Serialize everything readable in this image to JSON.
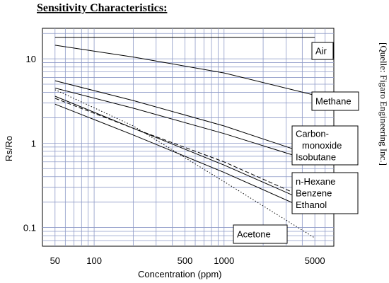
{
  "chart_data": {
    "type": "line",
    "title": "Sensitivity Characteristics:",
    "xlabel": "Concentration (ppm)",
    "ylabel": "Rs/Ro",
    "xscale": "log",
    "yscale": "log",
    "xlim": [
      40,
      7000
    ],
    "ylim": [
      0.06,
      23
    ],
    "grid": true,
    "xticks": [
      {
        "value": 50,
        "label": "50"
      },
      {
        "value": 100,
        "label": "100"
      },
      {
        "value": 500,
        "label": "500"
      },
      {
        "value": 1000,
        "label": "1000"
      },
      {
        "value": 5000,
        "label": "5000"
      }
    ],
    "yticks": [
      {
        "value": 10,
        "label": "10"
      },
      {
        "value": 1,
        "label": "1"
      },
      {
        "value": 0.1,
        "label": "0.1"
      }
    ],
    "series": [
      {
        "name": "Air",
        "style": "solid",
        "x": [
          50,
          5000
        ],
        "y": [
          18,
          18
        ]
      },
      {
        "name": "Methane",
        "style": "solid",
        "x": [
          50,
          200,
          1000,
          5000
        ],
        "y": [
          14.5,
          10.5,
          6.8,
          3.7
        ]
      },
      {
        "name": "Carbon-monoxide",
        "style": "solid",
        "x": [
          50,
          200,
          1000,
          5000
        ],
        "y": [
          5.5,
          3.2,
          1.6,
          0.7
        ]
      },
      {
        "name": "Isobutane",
        "style": "solid",
        "x": [
          50,
          200,
          1000,
          5000
        ],
        "y": [
          4.5,
          2.6,
          1.3,
          0.6
        ]
      },
      {
        "name": "n-Hexane",
        "style": "dashed",
        "x": [
          50,
          200,
          1000,
          5000
        ],
        "y": [
          3.4,
          1.5,
          0.6,
          0.2
        ]
      },
      {
        "name": "Benzene",
        "style": "solid",
        "x": [
          50,
          200,
          1000,
          5000
        ],
        "y": [
          3.6,
          1.5,
          0.55,
          0.185
        ]
      },
      {
        "name": "Ethanol",
        "style": "solid",
        "x": [
          50,
          200,
          1000,
          5000
        ],
        "y": [
          2.9,
          1.25,
          0.45,
          0.15
        ]
      },
      {
        "name": "Acetone",
        "style": "dotted",
        "x": [
          50,
          200,
          1000,
          5000
        ],
        "y": [
          4.3,
          1.6,
          0.35,
          0.075
        ]
      }
    ],
    "legend_labels": [
      "Air",
      "Methane",
      "Carbon-",
      "monoxide",
      "Isobutane",
      "n-Hexane",
      "Benzene",
      "Ethanol",
      "Acetone"
    ],
    "annotations": [
      "[Quelle: Figaro Engineering Inc.]"
    ]
  }
}
